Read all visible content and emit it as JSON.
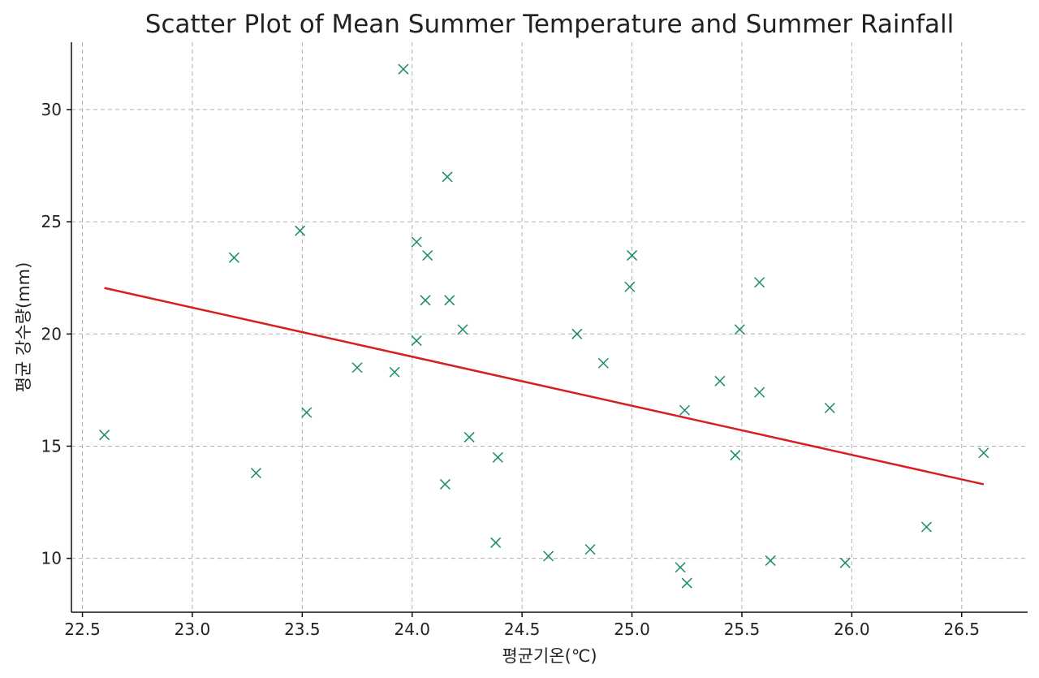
{
  "chart_data": {
    "type": "scatter",
    "title": "Scatter Plot of Mean Summer Temperature and Summer Rainfall",
    "xlabel": "평균기온(℃)",
    "ylabel": "평균 강수량(mm)",
    "xlim": [
      22.45,
      26.8
    ],
    "ylim": [
      7.6,
      33.0
    ],
    "xticks": [
      22.5,
      23.0,
      23.5,
      24.0,
      24.5,
      25.0,
      25.5,
      26.0,
      26.5
    ],
    "xtick_labels": [
      "22.5",
      "23.0",
      "23.5",
      "24.0",
      "24.5",
      "25.0",
      "25.5",
      "26.0",
      "26.5"
    ],
    "yticks": [
      10,
      15,
      20,
      25,
      30
    ],
    "ytick_labels": [
      "10",
      "15",
      "20",
      "25",
      "30"
    ],
    "grid": true,
    "series": [
      {
        "marker": "x",
        "color": "#1a8a6e",
        "points": [
          {
            "x": 22.6,
            "y": 15.5
          },
          {
            "x": 23.19,
            "y": 23.4
          },
          {
            "x": 23.29,
            "y": 13.8
          },
          {
            "x": 23.49,
            "y": 24.6
          },
          {
            "x": 23.52,
            "y": 16.5
          },
          {
            "x": 23.75,
            "y": 18.5
          },
          {
            "x": 23.92,
            "y": 18.3
          },
          {
            "x": 23.96,
            "y": 31.8
          },
          {
            "x": 24.02,
            "y": 24.1
          },
          {
            "x": 24.02,
            "y": 19.7
          },
          {
            "x": 24.06,
            "y": 21.5
          },
          {
            "x": 24.07,
            "y": 23.5
          },
          {
            "x": 24.15,
            "y": 13.3
          },
          {
            "x": 24.16,
            "y": 27.0
          },
          {
            "x": 24.17,
            "y": 21.5
          },
          {
            "x": 24.23,
            "y": 20.2
          },
          {
            "x": 24.26,
            "y": 15.4
          },
          {
            "x": 24.38,
            "y": 10.7
          },
          {
            "x": 24.39,
            "y": 14.5
          },
          {
            "x": 24.62,
            "y": 10.1
          },
          {
            "x": 24.75,
            "y": 20.0
          },
          {
            "x": 24.81,
            "y": 10.4
          },
          {
            "x": 24.87,
            "y": 18.7
          },
          {
            "x": 24.99,
            "y": 22.1
          },
          {
            "x": 25.0,
            "y": 23.5
          },
          {
            "x": 25.22,
            "y": 9.6
          },
          {
            "x": 25.24,
            "y": 16.6
          },
          {
            "x": 25.25,
            "y": 8.9
          },
          {
            "x": 25.4,
            "y": 17.9
          },
          {
            "x": 25.47,
            "y": 14.6
          },
          {
            "x": 25.49,
            "y": 20.2
          },
          {
            "x": 25.58,
            "y": 22.3
          },
          {
            "x": 25.58,
            "y": 17.4
          },
          {
            "x": 25.63,
            "y": 9.9
          },
          {
            "x": 25.9,
            "y": 16.7
          },
          {
            "x": 25.97,
            "y": 9.8
          },
          {
            "x": 26.34,
            "y": 11.4
          },
          {
            "x": 26.6,
            "y": 14.7
          }
        ]
      }
    ],
    "trendline": {
      "color": "#d62020",
      "x": [
        22.6,
        26.6
      ],
      "y": [
        22.05,
        13.3
      ]
    }
  }
}
